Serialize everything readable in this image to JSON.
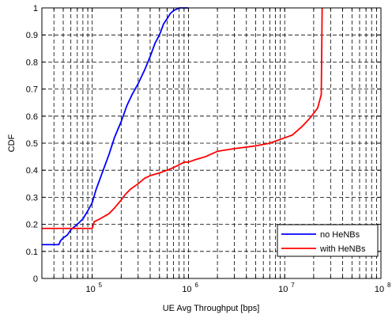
{
  "chart_data": {
    "type": "line",
    "xlabel": "UE Avg Throughput [bps]",
    "ylabel": "CDF",
    "xscale": "log",
    "xlim": [
      30000,
      100000000
    ],
    "ylim": [
      0,
      1
    ],
    "grid": true,
    "legend_position": "bottom-right",
    "x_tick_labels": [
      {
        "base": "10",
        "exp": "5",
        "value": 100000
      },
      {
        "base": "10",
        "exp": "6",
        "value": 1000000
      },
      {
        "base": "10",
        "exp": "7",
        "value": 10000000
      },
      {
        "base": "10",
        "exp": "8",
        "value": 100000000
      }
    ],
    "y_ticks": [
      0,
      0.1,
      0.2,
      0.3,
      0.4,
      0.5,
      0.6,
      0.7,
      0.8,
      0.9,
      1
    ],
    "y_tick_labels": [
      "0",
      "0.1",
      "0.2",
      "0.3",
      "0.4",
      "0.5",
      "0.6",
      "0.7",
      "0.8",
      "0.9",
      "1"
    ],
    "series": [
      {
        "name": "no HeNBs",
        "color": "#0000ff",
        "x": [
          30000,
          45000,
          47000,
          50000,
          55000,
          60000,
          70000,
          80000,
          90000,
          100000,
          110000,
          130000,
          150000,
          170000,
          200000,
          230000,
          260000,
          300000,
          350000,
          400000,
          450000,
          500000,
          550000,
          600000,
          650000,
          700000,
          800000,
          1000000
        ],
        "y": [
          0.125,
          0.125,
          0.14,
          0.15,
          0.16,
          0.18,
          0.2,
          0.22,
          0.25,
          0.28,
          0.33,
          0.4,
          0.46,
          0.52,
          0.58,
          0.64,
          0.68,
          0.72,
          0.77,
          0.82,
          0.87,
          0.9,
          0.94,
          0.96,
          0.98,
          0.99,
          1.0,
          1.0
        ]
      },
      {
        "name": "with HeNBs",
        "color": "#ff0000",
        "x": [
          30000,
          100000,
          105000,
          120000,
          150000,
          170000,
          200000,
          220000,
          250000,
          300000,
          350000,
          400000,
          500000,
          600000,
          700000,
          800000,
          900000,
          1000000,
          1200000,
          1500000,
          2000000,
          3000000,
          5000000,
          7000000,
          10000000,
          12000000,
          15000000,
          18000000,
          20000000,
          22000000,
          24000000,
          24500000
        ],
        "y": [
          0.185,
          0.185,
          0.21,
          0.22,
          0.24,
          0.26,
          0.29,
          0.31,
          0.33,
          0.35,
          0.37,
          0.38,
          0.39,
          0.4,
          0.41,
          0.42,
          0.43,
          0.43,
          0.44,
          0.45,
          0.47,
          0.48,
          0.49,
          0.5,
          0.52,
          0.53,
          0.56,
          0.59,
          0.61,
          0.63,
          0.68,
          1.0
        ]
      }
    ]
  }
}
